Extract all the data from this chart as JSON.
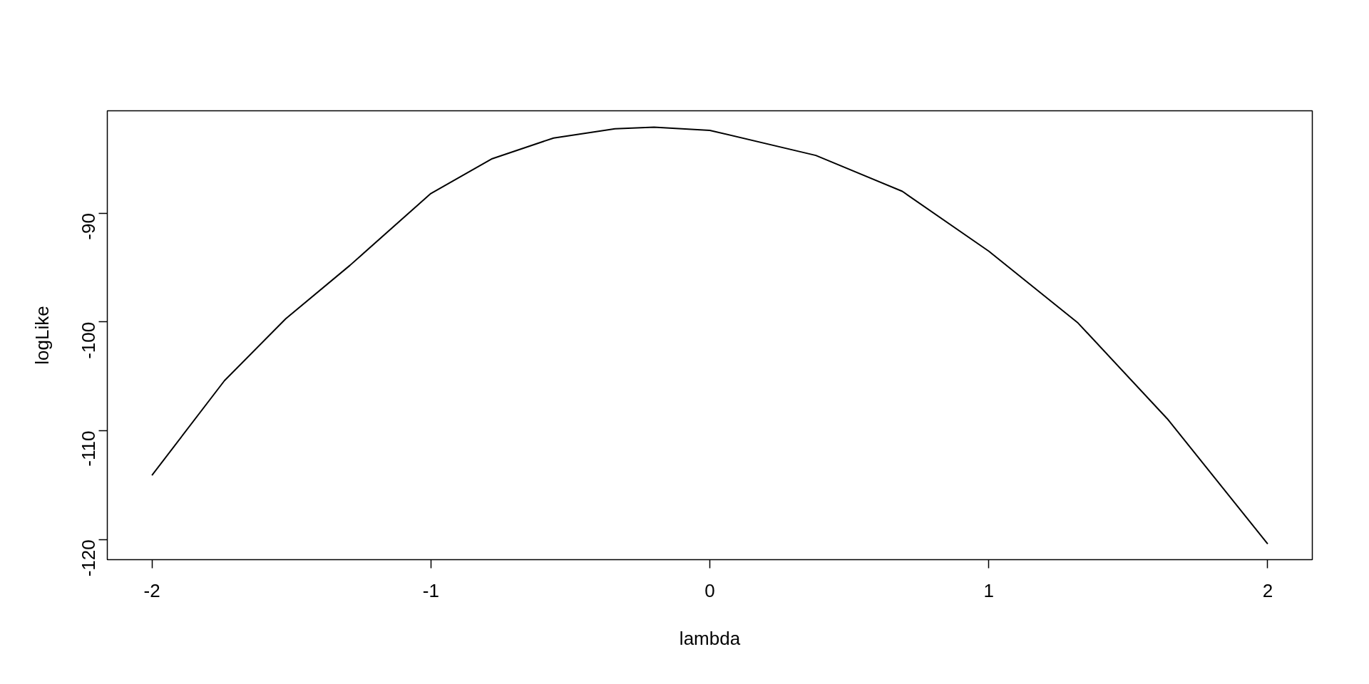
{
  "chart_data": {
    "type": "line",
    "xlabel": "lambda",
    "ylabel": "logLike",
    "series": [
      {
        "color": "#000000",
        "x": [
          -2,
          -1.74,
          -1.52,
          -1.29,
          -1.0,
          -0.78,
          -0.56,
          -0.34,
          -0.2,
          0,
          0.38,
          0.69,
          1.0,
          1.32,
          1.64,
          2
        ],
        "values": [
          -114.1,
          -105.4,
          -99.7,
          -94.8,
          -88.2,
          -85.0,
          -83.1,
          -82.25,
          -82.1,
          -82.4,
          -84.7,
          -88.0,
          -93.5,
          -100.1,
          -108.9,
          -120.4
        ]
      }
    ],
    "xlim": [
      -2.16,
      2.16
    ],
    "ylim": [
      -121.85,
      -80.6
    ],
    "xticks": [
      -2,
      -1,
      0,
      1,
      2
    ],
    "yticks": [
      -90,
      -100,
      -110,
      -120
    ],
    "grid": false,
    "marker": "none",
    "line_style": "solid"
  }
}
